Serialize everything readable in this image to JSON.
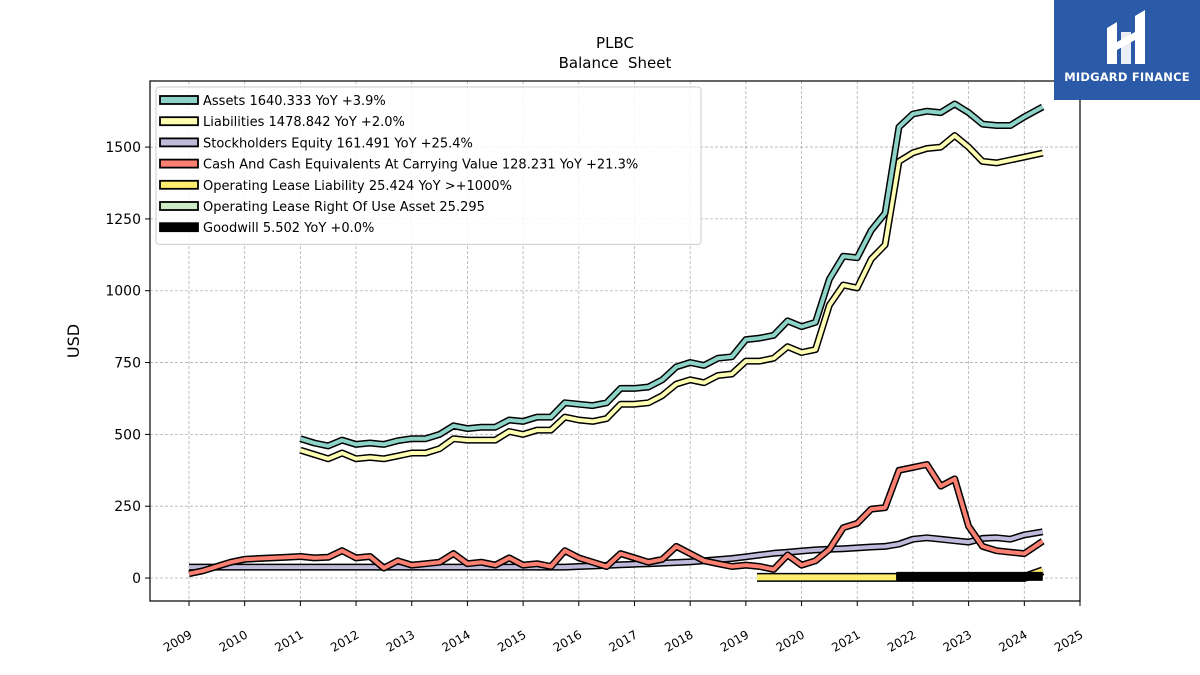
{
  "brand": {
    "name": "MIDGARD FINANCE"
  },
  "chart_data": {
    "type": "line",
    "title": "PLBC",
    "subtitle": "Balance  Sheet",
    "ylabel": "USD",
    "xlabel": "",
    "xlim": [
      2008.3,
      2025
    ],
    "ylim": [
      -80,
      1730
    ],
    "x_ticks": [
      "2009",
      "2010",
      "2011",
      "2012",
      "2013",
      "2014",
      "2015",
      "2016",
      "2017",
      "2018",
      "2019",
      "2020",
      "2021",
      "2022",
      "2023",
      "2024",
      "2025"
    ],
    "y_ticks": [
      0,
      250,
      500,
      750,
      1000,
      1250,
      1500
    ],
    "grid": true,
    "legend_position": "upper-left",
    "series": [
      {
        "name": "Assets  1640.333 YoY +3.9%",
        "color": "#8dd3c7",
        "x": [
          2011.0,
          2011.25,
          2011.5,
          2011.75,
          2012.0,
          2012.25,
          2012.5,
          2012.75,
          2013.0,
          2013.25,
          2013.5,
          2013.75,
          2014.0,
          2014.25,
          2014.5,
          2014.75,
          2015.0,
          2015.25,
          2015.5,
          2015.75,
          2016.0,
          2016.25,
          2016.5,
          2016.75,
          2017.0,
          2017.25,
          2017.5,
          2017.75,
          2018.0,
          2018.25,
          2018.5,
          2018.75,
          2019.0,
          2019.25,
          2019.5,
          2019.75,
          2020.0,
          2020.25,
          2020.5,
          2020.75,
          2021.0,
          2021.25,
          2021.5,
          2021.75,
          2022.0,
          2022.25,
          2022.5,
          2022.75,
          2023.0,
          2023.25,
          2023.5,
          2023.75,
          2024.0,
          2024.33
        ],
        "y": [
          485,
          470,
          460,
          480,
          465,
          470,
          465,
          478,
          485,
          485,
          500,
          530,
          520,
          525,
          525,
          550,
          545,
          560,
          560,
          610,
          605,
          600,
          610,
          660,
          660,
          665,
          690,
          735,
          750,
          740,
          765,
          770,
          830,
          835,
          845,
          895,
          875,
          890,
          1040,
          1120,
          1115,
          1210,
          1270,
          1570,
          1615,
          1625,
          1620,
          1650,
          1620,
          1580,
          1575,
          1575,
          1605,
          1640
        ]
      },
      {
        "name": "Liabilities  1478.842 YoY +2.0%",
        "color": "#ffffb3",
        "x": [
          2011.0,
          2011.25,
          2011.5,
          2011.75,
          2012.0,
          2012.25,
          2012.5,
          2012.75,
          2013.0,
          2013.25,
          2013.5,
          2013.75,
          2014.0,
          2014.25,
          2014.5,
          2014.75,
          2015.0,
          2015.25,
          2015.5,
          2015.75,
          2016.0,
          2016.25,
          2016.5,
          2016.75,
          2017.0,
          2017.25,
          2017.5,
          2017.75,
          2018.0,
          2018.25,
          2018.5,
          2018.75,
          2019.0,
          2019.25,
          2019.5,
          2019.75,
          2020.0,
          2020.25,
          2020.5,
          2020.75,
          2021.0,
          2021.25,
          2021.5,
          2021.75,
          2022.0,
          2022.25,
          2022.5,
          2022.75,
          2023.0,
          2023.25,
          2023.5,
          2023.75,
          2024.0,
          2024.33
        ],
        "y": [
          445,
          430,
          415,
          435,
          415,
          420,
          415,
          425,
          435,
          435,
          450,
          485,
          480,
          480,
          480,
          510,
          500,
          515,
          515,
          560,
          550,
          545,
          555,
          605,
          605,
          610,
          635,
          675,
          690,
          680,
          705,
          710,
          755,
          755,
          765,
          805,
          785,
          795,
          950,
          1020,
          1010,
          1110,
          1160,
          1450,
          1480,
          1495,
          1500,
          1540,
          1500,
          1450,
          1445,
          1455,
          1465,
          1479
        ]
      },
      {
        "name": "Stockholders Equity  161.491 YoY +25.4%",
        "color": "#bebada",
        "x": [
          2009.0,
          2009.25,
          2009.5,
          2009.75,
          2010.0,
          2010.25,
          2010.5,
          2010.75,
          2011.0,
          2011.25,
          2011.5,
          2011.75,
          2012.0,
          2012.25,
          2012.5,
          2012.75,
          2013.0,
          2013.25,
          2013.5,
          2013.75,
          2014.0,
          2014.25,
          2014.5,
          2014.75,
          2015.0,
          2015.25,
          2015.5,
          2015.75,
          2016.0,
          2016.25,
          2016.5,
          2016.75,
          2017.0,
          2017.25,
          2017.5,
          2017.75,
          2018.0,
          2018.25,
          2018.5,
          2018.75,
          2019.0,
          2019.25,
          2019.5,
          2019.75,
          2020.0,
          2020.25,
          2020.5,
          2020.75,
          2021.0,
          2021.25,
          2021.5,
          2021.75,
          2022.0,
          2022.25,
          2022.5,
          2022.75,
          2023.0,
          2023.25,
          2023.5,
          2023.75,
          2024.0,
          2024.33
        ],
        "y": [
          38,
          38,
          38,
          38,
          38,
          38,
          38,
          38,
          38,
          38,
          38,
          38,
          38,
          38,
          38,
          38,
          38,
          38,
          38,
          38,
          38,
          38,
          38,
          38,
          38,
          38,
          38,
          38,
          40,
          42,
          44,
          46,
          48,
          50,
          52,
          54,
          56,
          60,
          64,
          68,
          74,
          80,
          86,
          90,
          94,
          98,
          100,
          102,
          105,
          108,
          110,
          118,
          135,
          140,
          135,
          130,
          125,
          138,
          140,
          135,
          150,
          161
        ]
      },
      {
        "name": "Cash And Cash Equivalents At Carrying Value  128.231 YoY +21.3%",
        "color": "#fb8072",
        "x": [
          2009.0,
          2009.25,
          2009.5,
          2009.75,
          2010.0,
          2010.25,
          2010.5,
          2010.75,
          2011.0,
          2011.25,
          2011.5,
          2011.75,
          2012.0,
          2012.25,
          2012.5,
          2012.75,
          2013.0,
          2013.25,
          2013.5,
          2013.75,
          2014.0,
          2014.25,
          2014.5,
          2014.75,
          2015.0,
          2015.25,
          2015.5,
          2015.75,
          2016.0,
          2016.25,
          2016.5,
          2016.75,
          2017.0,
          2017.25,
          2017.5,
          2017.75,
          2018.0,
          2018.25,
          2018.5,
          2018.75,
          2019.0,
          2019.25,
          2019.5,
          2019.75,
          2020.0,
          2020.25,
          2020.5,
          2020.75,
          2021.0,
          2021.25,
          2021.5,
          2021.75,
          2022.0,
          2022.25,
          2022.5,
          2022.75,
          2023.0,
          2023.25,
          2023.5,
          2023.75,
          2024.0,
          2024.33
        ],
        "y": [
          15,
          25,
          40,
          55,
          65,
          68,
          70,
          72,
          75,
          70,
          72,
          95,
          70,
          75,
          35,
          60,
          45,
          50,
          55,
          85,
          50,
          55,
          45,
          70,
          45,
          50,
          40,
          95,
          70,
          55,
          40,
          85,
          70,
          55,
          65,
          110,
          85,
          60,
          50,
          40,
          45,
          40,
          30,
          80,
          45,
          60,
          100,
          175,
          190,
          240,
          245,
          375,
          385,
          395,
          320,
          345,
          180,
          110,
          95,
          90,
          85,
          128
        ]
      },
      {
        "name": "Operating Lease Liability  25.424 YoY >+1000%",
        "color": "#ffed6f",
        "x": [
          2019.2,
          2019.5,
          2020.0,
          2020.5,
          2021.0,
          2021.5,
          2022.0,
          2022.5,
          2023.0,
          2023.5,
          2024.0,
          2024.33
        ],
        "y": [
          2,
          2,
          2,
          2,
          2,
          2,
          2,
          2,
          2,
          2,
          2,
          25
        ]
      },
      {
        "name": "Operating Lease Right Of Use Asset  25.295",
        "color": "#ccebc5",
        "x": [
          2024.0,
          2024.33
        ],
        "y": [
          0,
          25
        ]
      },
      {
        "name": "Goodwill  5.502 YoY +0.0%",
        "color": "#000000",
        "x": [
          2021.7,
          2022.0,
          2022.5,
          2023.0,
          2023.5,
          2024.0,
          2024.33
        ],
        "y": [
          5.5,
          5.5,
          5.5,
          5.5,
          5.5,
          5.5,
          5.5
        ]
      }
    ]
  }
}
